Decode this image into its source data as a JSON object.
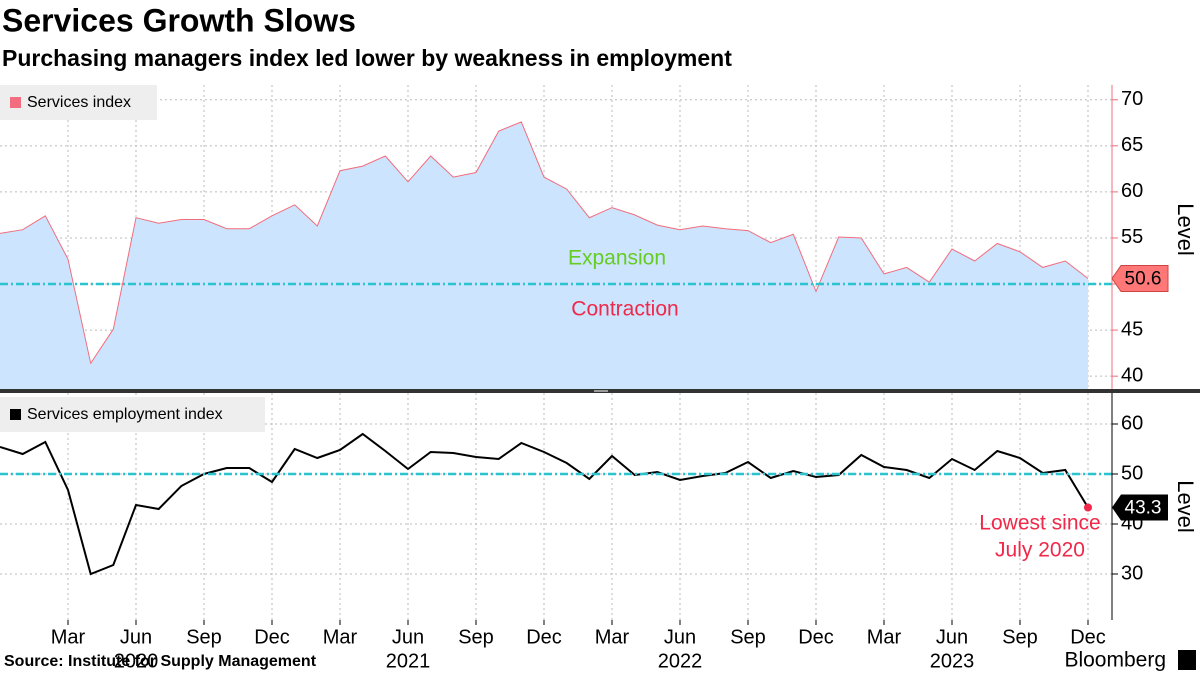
{
  "title": "Services Growth Slows",
  "subtitle": "Purchasing managers index led lower by weakness in employment",
  "source": "Source: Institute for Supply Management",
  "brand": "Bloomberg",
  "chart_data": [
    {
      "type": "area",
      "x": [
        "2019-12",
        "2020-01",
        "2020-02",
        "2020-03",
        "2020-04",
        "2020-05",
        "2020-06",
        "2020-07",
        "2020-08",
        "2020-09",
        "2020-10",
        "2020-11",
        "2020-12",
        "2021-01",
        "2021-02",
        "2021-03",
        "2021-04",
        "2021-05",
        "2021-06",
        "2021-07",
        "2021-08",
        "2021-09",
        "2021-10",
        "2021-11",
        "2021-12",
        "2022-01",
        "2022-02",
        "2022-03",
        "2022-04",
        "2022-05",
        "2022-06",
        "2022-07",
        "2022-08",
        "2022-09",
        "2022-10",
        "2022-11",
        "2022-12",
        "2023-01",
        "2023-02",
        "2023-03",
        "2023-04",
        "2023-05",
        "2023-06",
        "2023-07",
        "2023-08",
        "2023-09",
        "2023-10",
        "2023-11",
        "2023-12"
      ],
      "series": [
        {
          "name": "Services index",
          "color": "#f26d7d",
          "fill": "#cce4fd",
          "values": [
            55.5,
            55.9,
            57.4,
            52.7,
            41.4,
            45.1,
            57.2,
            56.6,
            57.0,
            57.0,
            56.0,
            56.0,
            57.4,
            58.6,
            56.3,
            62.3,
            62.8,
            63.9,
            61.1,
            63.9,
            61.6,
            62.1,
            66.6,
            67.6,
            61.6,
            60.3,
            57.2,
            58.3,
            57.5,
            56.4,
            55.9,
            56.3,
            56.0,
            55.8,
            54.5,
            55.4,
            49.2,
            55.1,
            55.0,
            51.1,
            51.8,
            50.2,
            53.8,
            52.5,
            54.4,
            53.5,
            51.8,
            52.5,
            50.6
          ]
        }
      ],
      "ylim": [
        38.5,
        71.6
      ],
      "yticks": [
        40,
        45,
        50,
        55,
        60,
        65,
        70
      ],
      "ylabel": "Level",
      "grid": true,
      "axis_color": "#f26d7d",
      "reference_line": {
        "value": 50,
        "color": "#29c4d0"
      },
      "annotations": [
        {
          "text": "Expansion",
          "color": "#66cc22"
        },
        {
          "text": "Contraction",
          "color": "#f0284a"
        }
      ]
    },
    {
      "type": "line",
      "x": [
        "2019-12",
        "2020-01",
        "2020-02",
        "2020-03",
        "2020-04",
        "2020-05",
        "2020-06",
        "2020-07",
        "2020-08",
        "2020-09",
        "2020-10",
        "2020-11",
        "2020-12",
        "2021-01",
        "2021-02",
        "2021-03",
        "2021-04",
        "2021-05",
        "2021-06",
        "2021-07",
        "2021-08",
        "2021-09",
        "2021-10",
        "2021-11",
        "2021-12",
        "2022-01",
        "2022-02",
        "2022-03",
        "2022-04",
        "2022-05",
        "2022-06",
        "2022-07",
        "2022-08",
        "2022-09",
        "2022-10",
        "2022-11",
        "2022-12",
        "2023-01",
        "2023-02",
        "2023-03",
        "2023-04",
        "2023-05",
        "2023-06",
        "2023-07",
        "2023-08",
        "2023-09",
        "2023-10",
        "2023-11",
        "2023-12"
      ],
      "series": [
        {
          "name": "Services employment index",
          "color": "#000000",
          "values": [
            55.4,
            54.0,
            56.4,
            46.8,
            30.0,
            31.8,
            43.8,
            43.0,
            47.6,
            50.0,
            51.2,
            51.2,
            48.4,
            55.0,
            53.2,
            54.8,
            58.0,
            54.6,
            51.0,
            54.4,
            54.2,
            53.4,
            53.0,
            56.2,
            54.4,
            52.2,
            49.0,
            53.6,
            49.8,
            50.4,
            48.8,
            49.6,
            50.2,
            52.4,
            49.2,
            50.6,
            49.4,
            49.8,
            53.8,
            51.4,
            50.8,
            49.2,
            53.0,
            50.8,
            54.6,
            53.2,
            50.2,
            50.8,
            43.3
          ]
        }
      ],
      "ylim": [
        20.8,
        66.2
      ],
      "yticks": [
        30,
        40,
        50,
        60
      ],
      "ylabel": "Level",
      "grid": true,
      "axis_color": "#000000",
      "reference_line": {
        "value": 50,
        "color": "#29c4d0"
      },
      "annotation": {
        "lines": [
          "Lowest since",
          "July 2020"
        ],
        "color": "#f0284a"
      },
      "xticks": [
        {
          "value": "2020-03",
          "label": "Mar"
        },
        {
          "value": "2020-06",
          "label": "Jun"
        },
        {
          "value": "2020-09",
          "label": "Sep"
        },
        {
          "value": "2020-12",
          "label": "Dec"
        },
        {
          "value": "2021-03",
          "label": "Mar"
        },
        {
          "value": "2021-06",
          "label": "Jun"
        },
        {
          "value": "2021-09",
          "label": "Sep"
        },
        {
          "value": "2021-12",
          "label": "Dec"
        },
        {
          "value": "2022-03",
          "label": "Mar"
        },
        {
          "value": "2022-06",
          "label": "Jun"
        },
        {
          "value": "2022-09",
          "label": "Sep"
        },
        {
          "value": "2022-12",
          "label": "Dec"
        },
        {
          "value": "2023-03",
          "label": "Mar"
        },
        {
          "value": "2023-06",
          "label": "Jun"
        },
        {
          "value": "2023-09",
          "label": "Sep"
        },
        {
          "value": "2023-12",
          "label": "Dec"
        }
      ],
      "xyears": [
        {
          "value": "2020-06",
          "label": "2020"
        },
        {
          "value": "2021-06",
          "label": "2021"
        },
        {
          "value": "2022-06",
          "label": "2022"
        },
        {
          "value": "2023-06",
          "label": "2023"
        }
      ]
    }
  ]
}
